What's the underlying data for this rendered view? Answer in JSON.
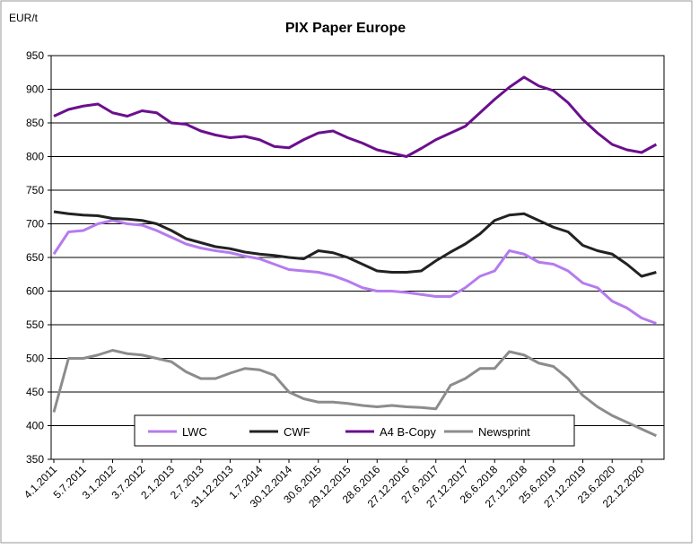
{
  "chart_data": {
    "type": "line",
    "title": "PIX Paper Europe",
    "y_label": "EUR/t",
    "categories": [
      "4.1.2011",
      null,
      "5.7.2011",
      null,
      "3.1.2012",
      null,
      "3.7.2012",
      null,
      "2.1.2013",
      null,
      "2.7.2013",
      null,
      "31.12.2013",
      null,
      "1.7.2014",
      null,
      "30.12.2014",
      null,
      "30.6.2015",
      null,
      "29.12.2015",
      null,
      "28.6.2016",
      null,
      "27.12.2016",
      null,
      "27.6.2017",
      null,
      "27.12.2017",
      null,
      "26.6.2018",
      null,
      "27.12.2018",
      null,
      "25.6.2019",
      null,
      "27.12.2019",
      null,
      "23.6.2020",
      null,
      "22.12.2020",
      null
    ],
    "series": [
      {
        "name": "LWC",
        "color": "#b57bee",
        "values": [
          655,
          688,
          690,
          700,
          705,
          700,
          698,
          690,
          680,
          670,
          664,
          660,
          657,
          652,
          648,
          640,
          632,
          630,
          628,
          623,
          615,
          605,
          600,
          600,
          598,
          595,
          592,
          592,
          605,
          622,
          630,
          660,
          655,
          643,
          640,
          630,
          612,
          605,
          585,
          575,
          560,
          552
        ]
      },
      {
        "name": "CWF",
        "color": "#222222",
        "values": [
          718,
          715,
          713,
          712,
          708,
          707,
          705,
          700,
          690,
          678,
          672,
          666,
          663,
          658,
          655,
          653,
          650,
          648,
          660,
          657,
          650,
          640,
          630,
          628,
          628,
          630,
          645,
          658,
          670,
          685,
          705,
          713,
          715,
          705,
          695,
          688,
          668,
          660,
          655,
          640,
          622,
          628
        ]
      },
      {
        "name": "A4 B-Copy",
        "color": "#6a0f8e",
        "values": [
          860,
          870,
          875,
          878,
          865,
          860,
          868,
          865,
          850,
          848,
          838,
          832,
          828,
          830,
          825,
          815,
          813,
          825,
          835,
          838,
          828,
          820,
          810,
          805,
          800,
          812,
          825,
          835,
          845,
          865,
          885,
          903,
          918,
          905,
          898,
          880,
          855,
          835,
          818,
          810,
          806,
          818
        ]
      },
      {
        "name": "Newsprint",
        "color": "#8c8c8c",
        "values": [
          420,
          500,
          500,
          505,
          512,
          507,
          505,
          500,
          495,
          480,
          470,
          470,
          478,
          485,
          483,
          475,
          450,
          440,
          435,
          435,
          433,
          430,
          428,
          430,
          428,
          427,
          425,
          460,
          470,
          485,
          485,
          510,
          505,
          493,
          488,
          470,
          445,
          428,
          415,
          405,
          395,
          385
        ]
      }
    ],
    "ylim": [
      350,
      950
    ],
    "yticks": [
      350,
      400,
      450,
      500,
      550,
      600,
      650,
      700,
      750,
      800,
      850,
      900,
      950
    ],
    "grid": true,
    "legend": "bottom"
  }
}
